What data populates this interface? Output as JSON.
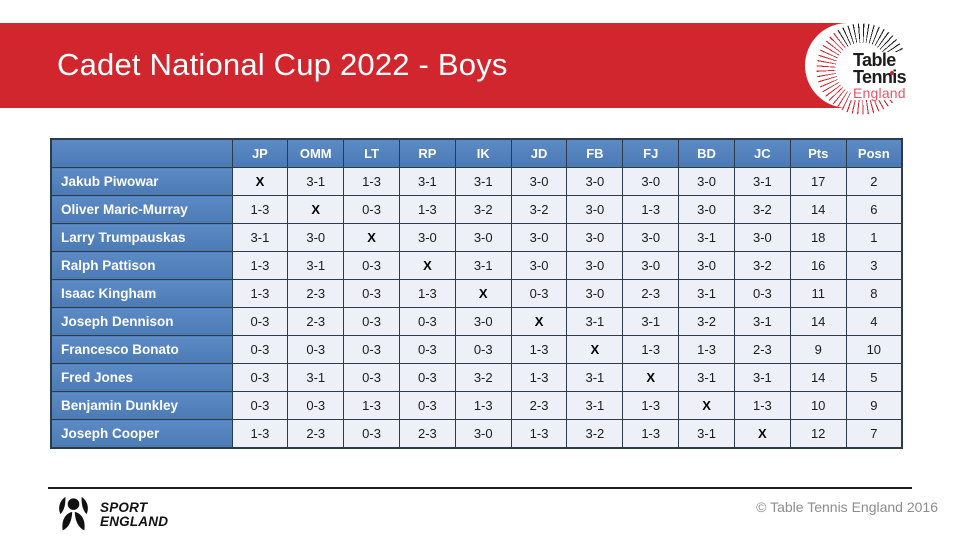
{
  "banner": {
    "title": "Cadet National Cup 2022 - Boys",
    "bg_color": "#D2262F"
  },
  "tte_logo": {
    "line1": "Table",
    "line2": "Tennis",
    "line3": "England"
  },
  "table": {
    "headers": [
      "",
      "JP",
      "OMM",
      "LT",
      "RP",
      "IK",
      "JD",
      "FB",
      "FJ",
      "BD",
      "JC",
      "Pts",
      "Posn"
    ],
    "rows": [
      {
        "name": "Jakub Piwowar",
        "cells": [
          "X",
          "3-1",
          "1-3",
          "3-1",
          "3-1",
          "3-0",
          "3-0",
          "3-0",
          "3-0",
          "3-1",
          "17",
          "2"
        ]
      },
      {
        "name": "Oliver Maric-Murray",
        "cells": [
          "1-3",
          "X",
          "0-3",
          "1-3",
          "3-2",
          "3-2",
          "3-0",
          "1-3",
          "3-0",
          "3-2",
          "14",
          "6"
        ]
      },
      {
        "name": "Larry Trumpauskas",
        "cells": [
          "3-1",
          "3-0",
          "X",
          "3-0",
          "3-0",
          "3-0",
          "3-0",
          "3-0",
          "3-1",
          "3-0",
          "18",
          "1"
        ]
      },
      {
        "name": "Ralph Pattison",
        "cells": [
          "1-3",
          "3-1",
          "0-3",
          "X",
          "3-1",
          "3-0",
          "3-0",
          "3-0",
          "3-0",
          "3-2",
          "16",
          "3"
        ]
      },
      {
        "name": "Isaac Kingham",
        "cells": [
          "1-3",
          "2-3",
          "0-3",
          "1-3",
          "X",
          "0-3",
          "3-0",
          "2-3",
          "3-1",
          "0-3",
          "11",
          "8"
        ]
      },
      {
        "name": "Joseph Dennison",
        "cells": [
          "0-3",
          "2-3",
          "0-3",
          "0-3",
          "3-0",
          "X",
          "3-1",
          "3-1",
          "3-2",
          "3-1",
          "14",
          "4"
        ]
      },
      {
        "name": "Francesco Bonato",
        "cells": [
          "0-3",
          "0-3",
          "0-3",
          "0-3",
          "0-3",
          "1-3",
          "X",
          "1-3",
          "1-3",
          "2-3",
          "9",
          "10"
        ]
      },
      {
        "name": "Fred Jones",
        "cells": [
          "0-3",
          "3-1",
          "0-3",
          "0-3",
          "3-2",
          "1-3",
          "3-1",
          "X",
          "3-1",
          "3-1",
          "14",
          "5"
        ]
      },
      {
        "name": "Benjamin Dunkley",
        "cells": [
          "0-3",
          "0-3",
          "1-3",
          "0-3",
          "1-3",
          "2-3",
          "3-1",
          "1-3",
          "X",
          "1-3",
          "10",
          "9"
        ]
      },
      {
        "name": "Joseph Cooper",
        "cells": [
          "1-3",
          "2-3",
          "0-3",
          "2-3",
          "3-0",
          "1-3",
          "3-2",
          "1-3",
          "3-1",
          "X",
          "12",
          "7"
        ]
      }
    ]
  },
  "footer": {
    "sport_england_line1": "SPORT",
    "sport_england_line2": "ENGLAND",
    "copyright": "© Table Tennis England 2016"
  }
}
